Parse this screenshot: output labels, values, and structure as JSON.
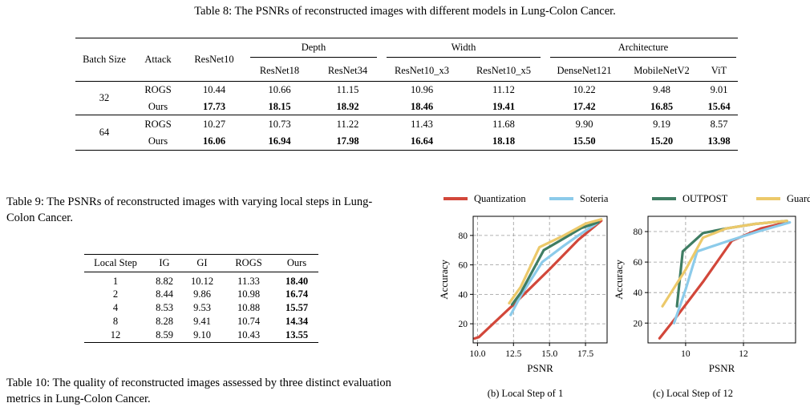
{
  "table8": {
    "caption": "Table 8: The PSNRs of reconstructed images with different models in Lung-Colon Cancer.",
    "headers": {
      "batch_size": "Batch Size",
      "attack": "Attack",
      "resnet10": "ResNet10",
      "group_depth": "Depth",
      "group_width": "Width",
      "group_arch": "Architecture",
      "sub": [
        "ResNet18",
        "ResNet34",
        "ResNet10_x3",
        "ResNet10_x5",
        "DenseNet121",
        "MobileNetV2",
        "ViT"
      ]
    },
    "groups": [
      {
        "batch": "32",
        "rows": [
          {
            "attack": "ROGS",
            "values": [
              "10.44",
              "10.66",
              "11.15",
              "10.96",
              "11.12",
              "10.22",
              "9.48",
              "9.01"
            ]
          },
          {
            "attack": "Ours",
            "values": [
              "17.73",
              "18.15",
              "18.92",
              "18.46",
              "19.41",
              "17.42",
              "16.85",
              "15.64"
            ]
          }
        ]
      },
      {
        "batch": "64",
        "rows": [
          {
            "attack": "ROGS",
            "values": [
              "10.27",
              "10.73",
              "11.22",
              "11.43",
              "11.68",
              "9.90",
              "9.19",
              "8.57"
            ]
          },
          {
            "attack": "Ours",
            "values": [
              "16.06",
              "16.94",
              "17.98",
              "16.64",
              "18.18",
              "15.50",
              "15.20",
              "13.98"
            ]
          }
        ]
      }
    ]
  },
  "table9": {
    "caption": "Table 9: The PSNRs of reconstructed images with varying local steps in Lung-Colon Cancer.",
    "headers": [
      "Local Step",
      "IG",
      "GI",
      "ROGS",
      "Ours"
    ],
    "rows": [
      [
        "1",
        "8.82",
        "10.12",
        "11.33",
        "18.40"
      ],
      [
        "2",
        "8.44",
        "9.86",
        "10.98",
        "16.74"
      ],
      [
        "4",
        "8.53",
        "9.53",
        "10.88",
        "15.57"
      ],
      [
        "8",
        "8.28",
        "9.41",
        "10.74",
        "14.34"
      ],
      [
        "12",
        "8.59",
        "9.10",
        "10.43",
        "13.55"
      ]
    ]
  },
  "table10": {
    "caption": "Table 10: The quality of reconstructed images assessed by three distinct evaluation metrics in Lung-Colon Cancer."
  },
  "legend": [
    "Quantization",
    "Soteria",
    "OUTPOST",
    "Guardian"
  ],
  "colors": {
    "Quantization": "#d2473a",
    "Soteria": "#8ccbea",
    "OUTPOST": "#3f7d63",
    "Guardian": "#ecc96a"
  },
  "chart_data": [
    {
      "type": "line",
      "caption": "(b) Local Step of 1",
      "xlabel": "PSNR",
      "ylabel": "Accuracy",
      "xlim": [
        9.7,
        19.0
      ],
      "ylim": [
        7,
        93
      ],
      "xticks": [
        10.0,
        12.5,
        15.0,
        17.5
      ],
      "xtick_labels": [
        "10.0",
        "12.5",
        "15.0",
        "17.5"
      ],
      "yticks": [
        20,
        40,
        60,
        80
      ],
      "grid": true,
      "series": [
        {
          "name": "Quantization",
          "points": [
            [
              9.8,
              10
            ],
            [
              10.1,
              11
            ],
            [
              12.5,
              33
            ],
            [
              15.0,
              57
            ],
            [
              17.0,
              77
            ],
            [
              18.6,
              90
            ]
          ]
        },
        {
          "name": "Soteria",
          "points": [
            [
              12.3,
              26
            ],
            [
              13.0,
              39
            ],
            [
              14.5,
              62
            ],
            [
              16.0,
              73
            ],
            [
              17.0,
              80
            ],
            [
              18.4,
              89
            ]
          ]
        },
        {
          "name": "OUTPOST",
          "points": [
            [
              12.4,
              33
            ],
            [
              13.0,
              41
            ],
            [
              14.6,
              70
            ],
            [
              16.0,
              78
            ],
            [
              17.2,
              85
            ],
            [
              18.4,
              89
            ]
          ]
        },
        {
          "name": "Guardian",
          "points": [
            [
              12.2,
              34
            ],
            [
              13.0,
              45
            ],
            [
              14.3,
              72
            ],
            [
              16.0,
              80
            ],
            [
              17.5,
              88
            ],
            [
              18.6,
              91
            ]
          ]
        }
      ]
    },
    {
      "type": "line",
      "caption": "(c) Local Step of 12",
      "xlabel": "PSNR",
      "ylabel": "Accuracy",
      "xlim": [
        8.7,
        13.8
      ],
      "ylim": [
        7,
        90
      ],
      "xticks": [
        10,
        12
      ],
      "xtick_labels": [
        "10",
        "12"
      ],
      "yticks": [
        20,
        40,
        60,
        80
      ],
      "grid": true,
      "series": [
        {
          "name": "Quantization",
          "points": [
            [
              9.1,
              10
            ],
            [
              9.6,
              22
            ],
            [
              10.6,
              47
            ],
            [
              11.6,
              74
            ],
            [
              12.6,
              82
            ],
            [
              13.5,
              86
            ]
          ]
        },
        {
          "name": "Soteria",
          "points": [
            [
              9.6,
              20
            ],
            [
              10.0,
              42
            ],
            [
              10.4,
              67
            ],
            [
              11.5,
              74
            ],
            [
              12.5,
              80
            ],
            [
              13.6,
              86
            ]
          ]
        },
        {
          "name": "OUTPOST",
          "points": [
            [
              9.7,
              31
            ],
            [
              9.9,
              67
            ],
            [
              10.6,
              79
            ],
            [
              11.4,
              82
            ],
            [
              12.4,
              85
            ],
            [
              13.5,
              87
            ]
          ]
        },
        {
          "name": "Guardian",
          "points": [
            [
              9.2,
              31
            ],
            [
              10.0,
              55
            ],
            [
              10.6,
              76
            ],
            [
              11.4,
              82
            ],
            [
              12.4,
              85
            ],
            [
              13.5,
              87
            ]
          ]
        }
      ]
    }
  ]
}
